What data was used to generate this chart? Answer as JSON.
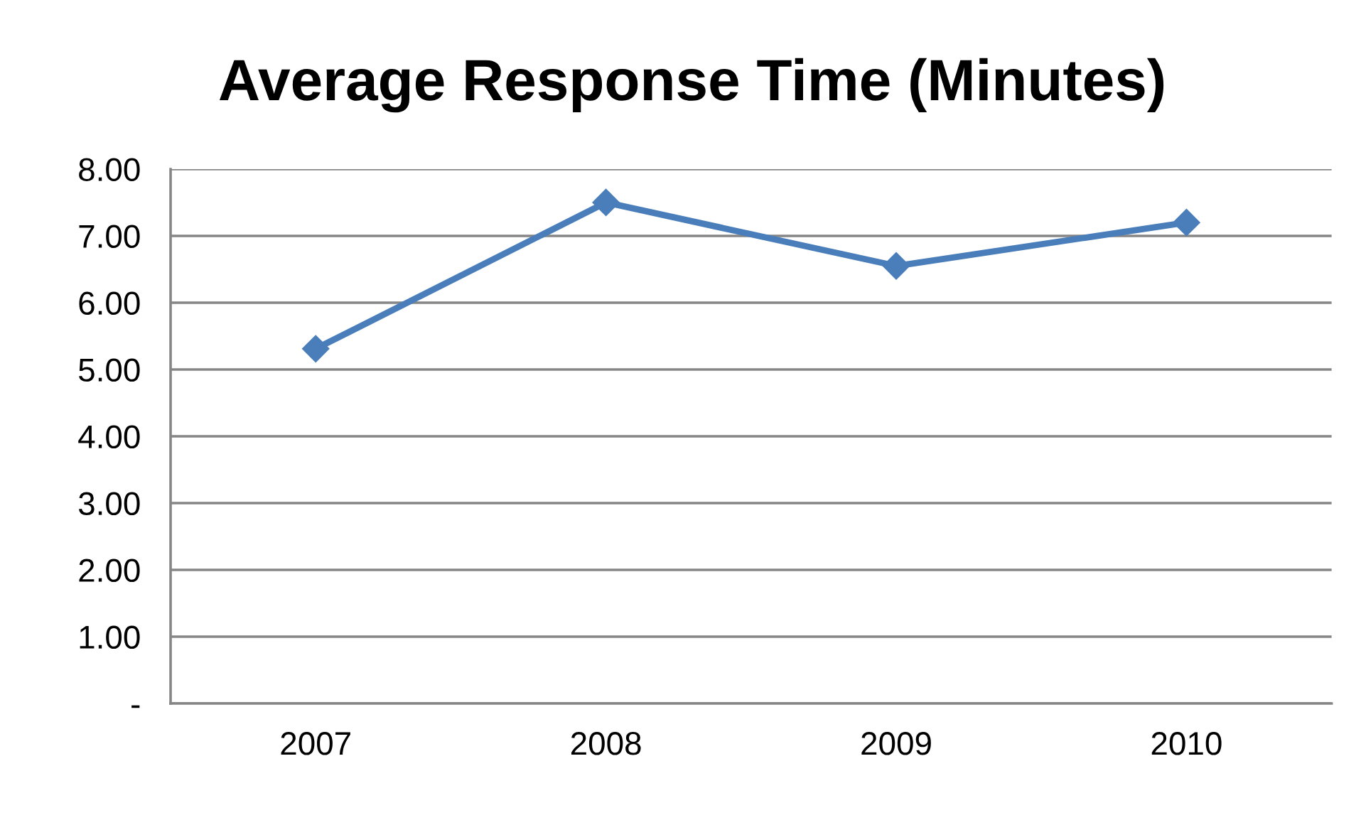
{
  "chart_data": {
    "type": "line",
    "title": "Average Response Time (Minutes)",
    "categories": [
      "2007",
      "2008",
      "2009",
      "2010"
    ],
    "series": [
      {
        "color": "#4a7ebb",
        "values": [
          5.31,
          7.5,
          6.55,
          7.2
        ]
      }
    ],
    "ylim": [
      0,
      8
    ],
    "yticks": [
      {
        "value": 0,
        "label": "-"
      },
      {
        "value": 1,
        "label": "1.00"
      },
      {
        "value": 2,
        "label": "2.00"
      },
      {
        "value": 3,
        "label": "3.00"
      },
      {
        "value": 4,
        "label": "4.00"
      },
      {
        "value": 5,
        "label": "5.00"
      },
      {
        "value": 6,
        "label": "6.00"
      },
      {
        "value": 7,
        "label": "7.00"
      },
      {
        "value": 8,
        "label": "8.00"
      }
    ],
    "grid": "y",
    "marker": "diamond",
    "line_style": "solid"
  }
}
